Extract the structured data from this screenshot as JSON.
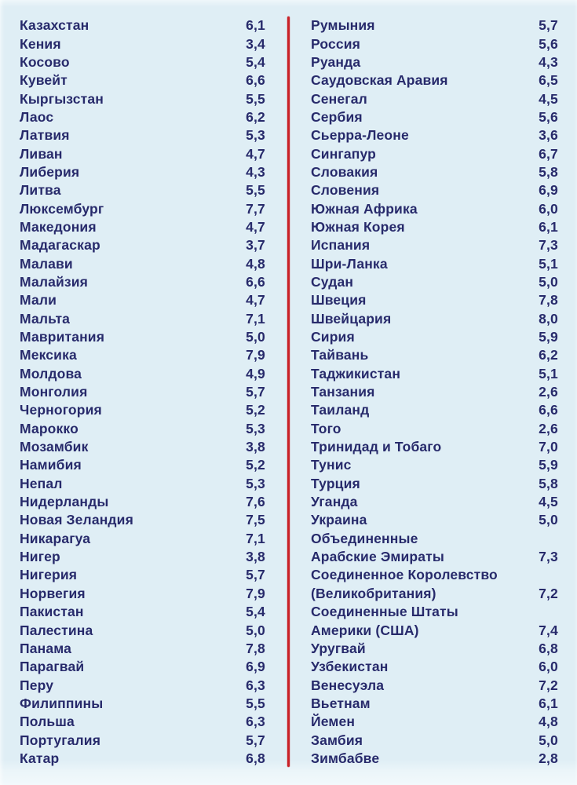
{
  "page": {
    "colors": {
      "background": "#dfeef5",
      "text": "#272a6b",
      "divider": "#c92127"
    }
  },
  "table": {
    "columns": [
      {
        "rows": [
          {
            "label": "Казахстан",
            "value": "6,1"
          },
          {
            "label": "Кения",
            "value": "3,4"
          },
          {
            "label": "Косово",
            "value": "5,4"
          },
          {
            "label": "Кувейт",
            "value": "6,6"
          },
          {
            "label": "Кыргызстан",
            "value": "5,5"
          },
          {
            "label": "Лаос",
            "value": "6,2"
          },
          {
            "label": "Латвия",
            "value": "5,3"
          },
          {
            "label": "Ливан",
            "value": "4,7"
          },
          {
            "label": "Либерия",
            "value": "4,3"
          },
          {
            "label": "Литва",
            "value": "5,5"
          },
          {
            "label": "Люксембург",
            "value": "7,7"
          },
          {
            "label": "Македония",
            "value": "4,7"
          },
          {
            "label": "Мадагаскар",
            "value": "3,7"
          },
          {
            "label": "Малави",
            "value": "4,8"
          },
          {
            "label": "Малайзия",
            "value": "6,6"
          },
          {
            "label": "Мали",
            "value": "4,7"
          },
          {
            "label": "Мальта",
            "value": "7,1"
          },
          {
            "label": "Мавритания",
            "value": "5,0"
          },
          {
            "label": "Мексика",
            "value": "7,9"
          },
          {
            "label": "Молдова",
            "value": "4,9"
          },
          {
            "label": "Монголия",
            "value": "5,7"
          },
          {
            "label": "Черногория",
            "value": "5,2"
          },
          {
            "label": "Марокко",
            "value": "5,3"
          },
          {
            "label": "Мозамбик",
            "value": "3,8"
          },
          {
            "label": "Намибия",
            "value": "5,2"
          },
          {
            "label": "Непал",
            "value": "5,3"
          },
          {
            "label": "Нидерланды",
            "value": "7,6"
          },
          {
            "label": "Новая Зеландия",
            "value": "7,5"
          },
          {
            "label": "Никарагуа",
            "value": "7,1"
          },
          {
            "label": "Нигер",
            "value": "3,8"
          },
          {
            "label": "Нигерия",
            "value": "5,7"
          },
          {
            "label": "Норвегия",
            "value": "7,9"
          },
          {
            "label": "Пакистан",
            "value": "5,4"
          },
          {
            "label": "Палестина",
            "value": "5,0"
          },
          {
            "label": "Панама",
            "value": "7,8"
          },
          {
            "label": "Парагвай",
            "value": "6,9"
          },
          {
            "label": "Перу",
            "value": "6,3"
          },
          {
            "label": "Филиппины",
            "value": "5,5"
          },
          {
            "label": "Польша",
            "value": "6,3"
          },
          {
            "label": "Португалия",
            "value": "5,7"
          },
          {
            "label": "Катар",
            "value": "6,8"
          }
        ]
      },
      {
        "rows": [
          {
            "label": "Румыния",
            "value": "5,7"
          },
          {
            "label": "Россия",
            "value": "5,6"
          },
          {
            "label": "Руанда",
            "value": "4,3"
          },
          {
            "label": "Саудовская Аравия",
            "value": "6,5"
          },
          {
            "label": "Сенегал",
            "value": "4,5"
          },
          {
            "label": "Сербия",
            "value": "5,6"
          },
          {
            "label": "Сьерра-Леоне",
            "value": "3,6"
          },
          {
            "label": "Сингапур",
            "value": "6,7"
          },
          {
            "label": "Словакия",
            "value": "5,8"
          },
          {
            "label": "Словения",
            "value": "6,9"
          },
          {
            "label": "Южная Африка",
            "value": "6,0"
          },
          {
            "label": "Южная Корея",
            "value": "6,1"
          },
          {
            "label": "Испания",
            "value": "7,3"
          },
          {
            "label": "Шри-Ланка",
            "value": "5,1"
          },
          {
            "label": "Судан",
            "value": "5,0"
          },
          {
            "label": "Швеция",
            "value": "7,8"
          },
          {
            "label": "Швейцария",
            "value": "8,0"
          },
          {
            "label": "Сирия",
            "value": "5,9"
          },
          {
            "label": "Тайвань",
            "value": "6,2"
          },
          {
            "label": "Таджикистан",
            "value": "5,1"
          },
          {
            "label": "Танзания",
            "value": "2,6"
          },
          {
            "label": "Таиланд",
            "value": "6,6"
          },
          {
            "label": "Того",
            "value": "2,6"
          },
          {
            "label": "Тринидад и Тобаго",
            "value": "7,0"
          },
          {
            "label": "Тунис",
            "value": "5,9"
          },
          {
            "label": "Турция",
            "value": "5,8"
          },
          {
            "label": "Уганда",
            "value": "4,5"
          },
          {
            "label": "Украина",
            "value": "5,0"
          },
          {
            "label": "Объединенные",
            "value": ""
          },
          {
            "label": "Арабские Эмираты",
            "value": "7,3"
          },
          {
            "label": "Соединенное Королевство",
            "value": ""
          },
          {
            "label": "(Великобритания)",
            "value": "7,2"
          },
          {
            "label": "Соединенные Штаты",
            "value": ""
          },
          {
            "label": "Америки (США)",
            "value": "7,4"
          },
          {
            "label": "Уругвай",
            "value": "6,8"
          },
          {
            "label": "Узбекистан",
            "value": "6,0"
          },
          {
            "label": "Венесуэла",
            "value": "7,2"
          },
          {
            "label": "Вьетнам",
            "value": "6,1"
          },
          {
            "label": "Йемен",
            "value": "4,8"
          },
          {
            "label": "Замбия",
            "value": "5,0"
          },
          {
            "label": "Зимбабве",
            "value": "2,8"
          }
        ]
      }
    ]
  }
}
